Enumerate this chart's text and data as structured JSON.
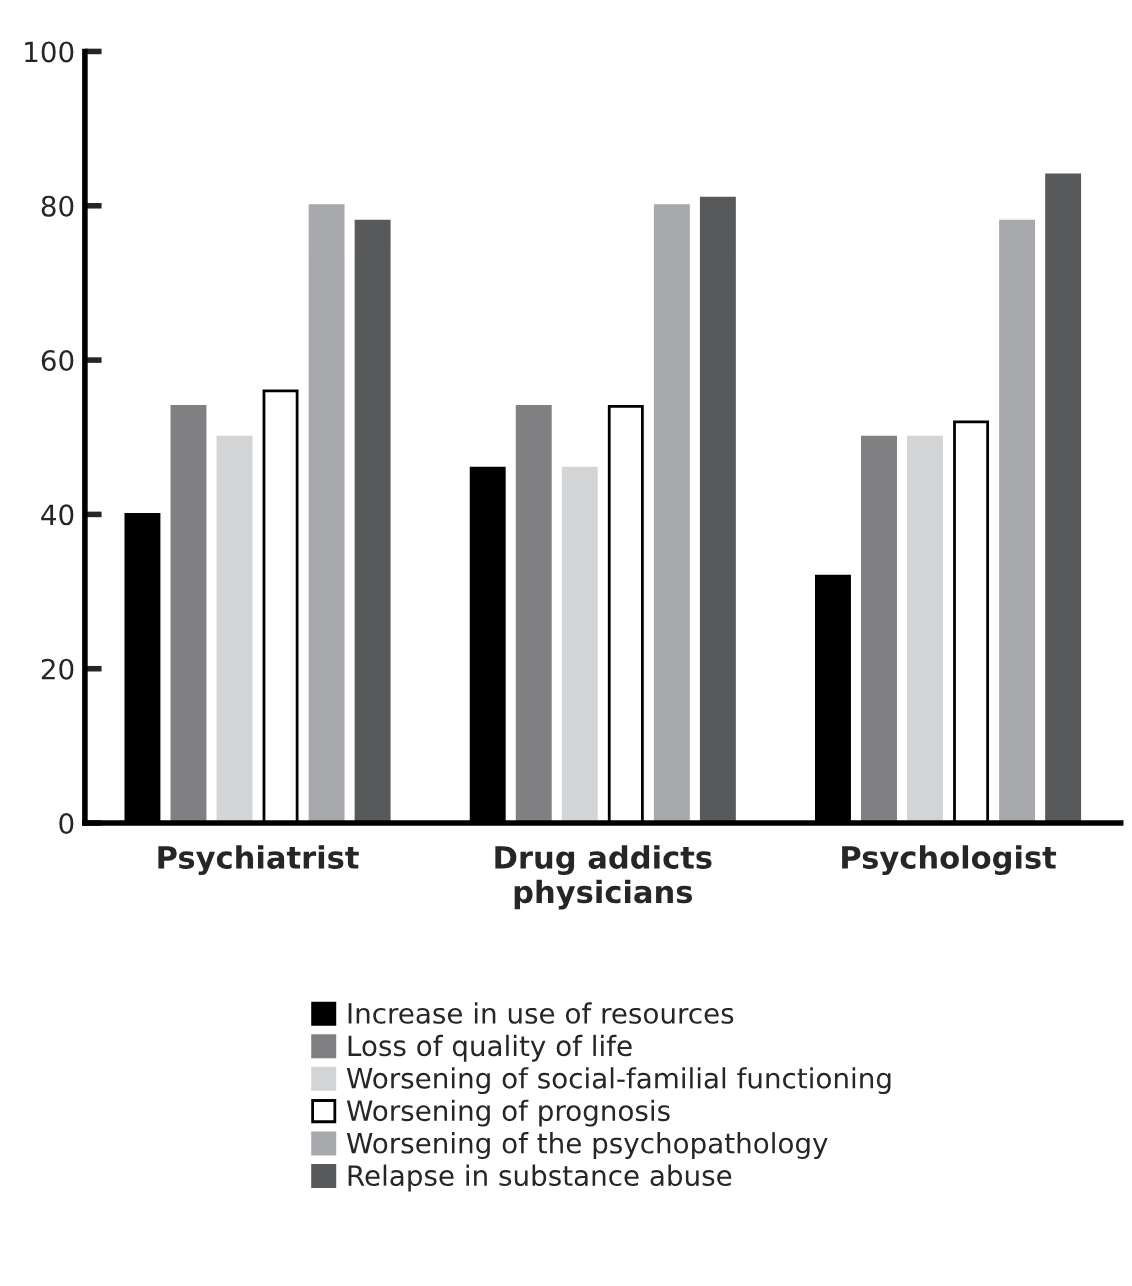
{
  "chart_data": {
    "type": "bar",
    "categories": [
      "Psychiatrist",
      "Drug addicts\nphysicians",
      "Psychologist"
    ],
    "series": [
      {
        "name": "Increase in use of resources",
        "color": "#000000",
        "values": [
          40,
          46,
          32
        ]
      },
      {
        "name": "Loss of quality of life",
        "color": "#808083",
        "values": [
          54,
          54,
          50
        ]
      },
      {
        "name": "Worsening of social-familial functioning",
        "color": "#d3d4d6",
        "values": [
          50,
          46,
          50
        ]
      },
      {
        "name": "Worsening of prognosis",
        "color": "#ffffff",
        "values": [
          56,
          54,
          52
        ]
      },
      {
        "name": "Worsening of the psychopathology",
        "color": "#a7a8ab",
        "values": [
          80,
          80,
          78
        ]
      },
      {
        "name": "Relapse in substance abuse",
        "color": "#58595b",
        "values": [
          78,
          81,
          84
        ]
      }
    ],
    "ylim": [
      0,
      100
    ],
    "yticks": [
      0,
      20,
      40,
      60,
      80,
      100
    ],
    "grid": false,
    "legend": "bottom"
  }
}
